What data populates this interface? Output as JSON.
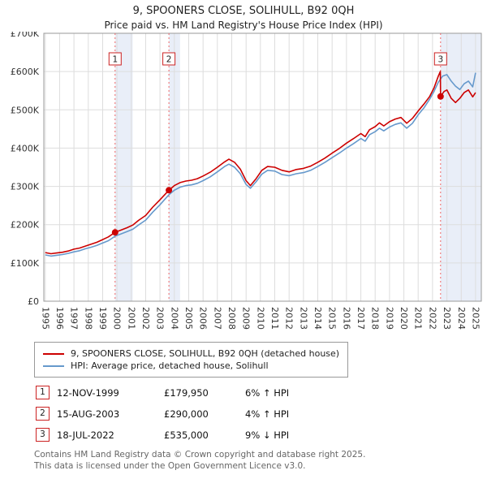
{
  "title": "9, SPOONERS CLOSE, SOLIHULL, B92 0QH",
  "subtitle": "Price paid vs. HM Land Registry's House Price Index (HPI)",
  "legend": {
    "series1": "9, SPOONERS CLOSE, SOLIHULL, B92 0QH (detached house)",
    "series2": "HPI: Average price, detached house, Solihull"
  },
  "transactions": [
    {
      "num": "1",
      "date": "12-NOV-1999",
      "price": "£179,950",
      "hpi": "6% ↑ HPI"
    },
    {
      "num": "2",
      "date": "15-AUG-2003",
      "price": "£290,000",
      "hpi": "4% ↑ HPI"
    },
    {
      "num": "3",
      "date": "18-JUL-2022",
      "price": "£535,000",
      "hpi": "9% ↓ HPI"
    }
  ],
  "footer": {
    "line1": "Contains HM Land Registry data © Crown copyright and database right 2025.",
    "line2": "This data is licensed under the Open Government Licence v3.0."
  },
  "chart_data": {
    "type": "line",
    "title": "9, SPOONERS CLOSE, SOLIHULL, B92 0QH",
    "values_unit": "GBP thousands",
    "xlim": [
      1994.9,
      2025.4
    ],
    "ylim": [
      0,
      700
    ],
    "xticks": [
      1995,
      1996,
      1997,
      1998,
      1999,
      2000,
      2001,
      2002,
      2003,
      2004,
      2005,
      2006,
      2007,
      2008,
      2009,
      2010,
      2011,
      2012,
      2013,
      2014,
      2015,
      2016,
      2017,
      2018,
      2019,
      2020,
      2021,
      2022,
      2023,
      2024,
      2025
    ],
    "yticks": [
      {
        "v": 0,
        "label": "£0"
      },
      {
        "v": 100,
        "label": "£100K"
      },
      {
        "v": 200,
        "label": "£200K"
      },
      {
        "v": 300,
        "label": "£300K"
      },
      {
        "v": 400,
        "label": "£400K"
      },
      {
        "v": 500,
        "label": "£500K"
      },
      {
        "v": 600,
        "label": "£600K"
      },
      {
        "v": 700,
        "label": "£700K"
      }
    ],
    "colors": {
      "property_line": "#cc0000",
      "hpi_line": "#6699cc",
      "sale_band": "#e9eef8",
      "sale_vline": "#ee6666",
      "grid": "#dddddd",
      "plot_border": "#999999",
      "marker": "#cc0000",
      "badge_border": "#cc2222"
    },
    "bands": [
      {
        "from": 1999.87,
        "to": 2001.1
      },
      {
        "from": 2003.62,
        "to": 2004.4
      },
      {
        "from": 2022.56,
        "to": 2025.4
      }
    ],
    "sale_lines": [
      {
        "num": "1",
        "x": 1999.87
      },
      {
        "num": "2",
        "x": 2003.62
      },
      {
        "num": "3",
        "x": 2022.56
      }
    ],
    "markers": [
      {
        "x": 1999.87,
        "y": 179.95
      },
      {
        "x": 2003.62,
        "y": 290
      },
      {
        "x": 2022.56,
        "y": 535
      }
    ],
    "series": [
      {
        "name": "9, SPOONERS CLOSE, SOLIHULL, B92 0QH (detached house)",
        "color": "#cc0000",
        "points": [
          [
            1995.0,
            127
          ],
          [
            1995.4,
            124
          ],
          [
            1995.8,
            126
          ],
          [
            1996.2,
            128
          ],
          [
            1996.6,
            131
          ],
          [
            1997.0,
            136
          ],
          [
            1997.4,
            139
          ],
          [
            1997.8,
            144
          ],
          [
            1998.2,
            149
          ],
          [
            1998.6,
            154
          ],
          [
            1999.0,
            161
          ],
          [
            1999.4,
            168
          ],
          [
            1999.87,
            180
          ],
          [
            2000.3,
            186
          ],
          [
            2000.7,
            192
          ],
          [
            2001.1,
            199
          ],
          [
            2001.5,
            211
          ],
          [
            2002.0,
            224
          ],
          [
            2002.5,
            246
          ],
          [
            2003.0,
            265
          ],
          [
            2003.62,
            290
          ],
          [
            2004.0,
            302
          ],
          [
            2004.4,
            310
          ],
          [
            2004.8,
            314
          ],
          [
            2005.2,
            316
          ],
          [
            2005.6,
            320
          ],
          [
            2006.0,
            327
          ],
          [
            2006.5,
            337
          ],
          [
            2007.0,
            350
          ],
          [
            2007.5,
            364
          ],
          [
            2007.8,
            371
          ],
          [
            2008.2,
            363
          ],
          [
            2008.6,
            345
          ],
          [
            2009.0,
            315
          ],
          [
            2009.3,
            302
          ],
          [
            2009.7,
            320
          ],
          [
            2010.1,
            342
          ],
          [
            2010.5,
            352
          ],
          [
            2011.0,
            350
          ],
          [
            2011.5,
            342
          ],
          [
            2012.0,
            338
          ],
          [
            2012.5,
            344
          ],
          [
            2013.0,
            347
          ],
          [
            2013.5,
            353
          ],
          [
            2014.0,
            363
          ],
          [
            2014.5,
            374
          ],
          [
            2015.0,
            387
          ],
          [
            2015.5,
            399
          ],
          [
            2016.0,
            413
          ],
          [
            2016.5,
            425
          ],
          [
            2017.0,
            438
          ],
          [
            2017.3,
            430
          ],
          [
            2017.6,
            448
          ],
          [
            2018.0,
            456
          ],
          [
            2018.3,
            466
          ],
          [
            2018.6,
            458
          ],
          [
            2019.0,
            469
          ],
          [
            2019.4,
            476
          ],
          [
            2019.8,
            480
          ],
          [
            2020.2,
            465
          ],
          [
            2020.6,
            478
          ],
          [
            2021.0,
            497
          ],
          [
            2021.4,
            515
          ],
          [
            2021.8,
            535
          ],
          [
            2022.1,
            557
          ],
          [
            2022.4,
            588
          ],
          [
            2022.54,
            600
          ],
          [
            2022.56,
            535
          ],
          [
            2022.8,
            548
          ],
          [
            2023.0,
            552
          ],
          [
            2023.3,
            530
          ],
          [
            2023.6,
            519
          ],
          [
            2023.9,
            530
          ],
          [
            2024.2,
            545
          ],
          [
            2024.5,
            552
          ],
          [
            2024.8,
            534
          ],
          [
            2025.0,
            545
          ]
        ]
      },
      {
        "name": "HPI: Average price, detached house, Solihull",
        "color": "#6699cc",
        "points": [
          [
            1995.0,
            121
          ],
          [
            1995.4,
            118
          ],
          [
            1995.8,
            120
          ],
          [
            1996.2,
            122
          ],
          [
            1996.6,
            125
          ],
          [
            1997.0,
            129
          ],
          [
            1997.4,
            132
          ],
          [
            1997.8,
            137
          ],
          [
            1998.2,
            141
          ],
          [
            1998.6,
            146
          ],
          [
            1999.0,
            152
          ],
          [
            1999.4,
            158
          ],
          [
            1999.87,
            170
          ],
          [
            2000.3,
            176
          ],
          [
            2000.7,
            182
          ],
          [
            2001.1,
            188
          ],
          [
            2001.5,
            199
          ],
          [
            2002.0,
            212
          ],
          [
            2002.5,
            233
          ],
          [
            2003.0,
            252
          ],
          [
            2003.62,
            278
          ],
          [
            2004.0,
            290
          ],
          [
            2004.4,
            298
          ],
          [
            2004.8,
            302
          ],
          [
            2005.2,
            304
          ],
          [
            2005.6,
            308
          ],
          [
            2006.0,
            315
          ],
          [
            2006.5,
            325
          ],
          [
            2007.0,
            338
          ],
          [
            2007.5,
            352
          ],
          [
            2007.8,
            358
          ],
          [
            2008.2,
            350
          ],
          [
            2008.6,
            333
          ],
          [
            2009.0,
            305
          ],
          [
            2009.3,
            295
          ],
          [
            2009.7,
            312
          ],
          [
            2010.1,
            332
          ],
          [
            2010.5,
            342
          ],
          [
            2011.0,
            340
          ],
          [
            2011.5,
            331
          ],
          [
            2012.0,
            328
          ],
          [
            2012.5,
            333
          ],
          [
            2013.0,
            336
          ],
          [
            2013.5,
            342
          ],
          [
            2014.0,
            352
          ],
          [
            2014.5,
            363
          ],
          [
            2015.0,
            375
          ],
          [
            2015.5,
            387
          ],
          [
            2016.0,
            400
          ],
          [
            2016.5,
            412
          ],
          [
            2017.0,
            425
          ],
          [
            2017.3,
            418
          ],
          [
            2017.6,
            435
          ],
          [
            2018.0,
            443
          ],
          [
            2018.3,
            452
          ],
          [
            2018.6,
            445
          ],
          [
            2019.0,
            455
          ],
          [
            2019.4,
            462
          ],
          [
            2019.8,
            466
          ],
          [
            2020.2,
            452
          ],
          [
            2020.6,
            465
          ],
          [
            2021.0,
            487
          ],
          [
            2021.4,
            505
          ],
          [
            2021.8,
            528
          ],
          [
            2022.1,
            548
          ],
          [
            2022.4,
            572
          ],
          [
            2022.7,
            588
          ],
          [
            2023.0,
            592
          ],
          [
            2023.3,
            575
          ],
          [
            2023.6,
            562
          ],
          [
            2023.9,
            553
          ],
          [
            2024.2,
            568
          ],
          [
            2024.5,
            575
          ],
          [
            2024.8,
            560
          ],
          [
            2025.0,
            597
          ]
        ]
      }
    ]
  }
}
